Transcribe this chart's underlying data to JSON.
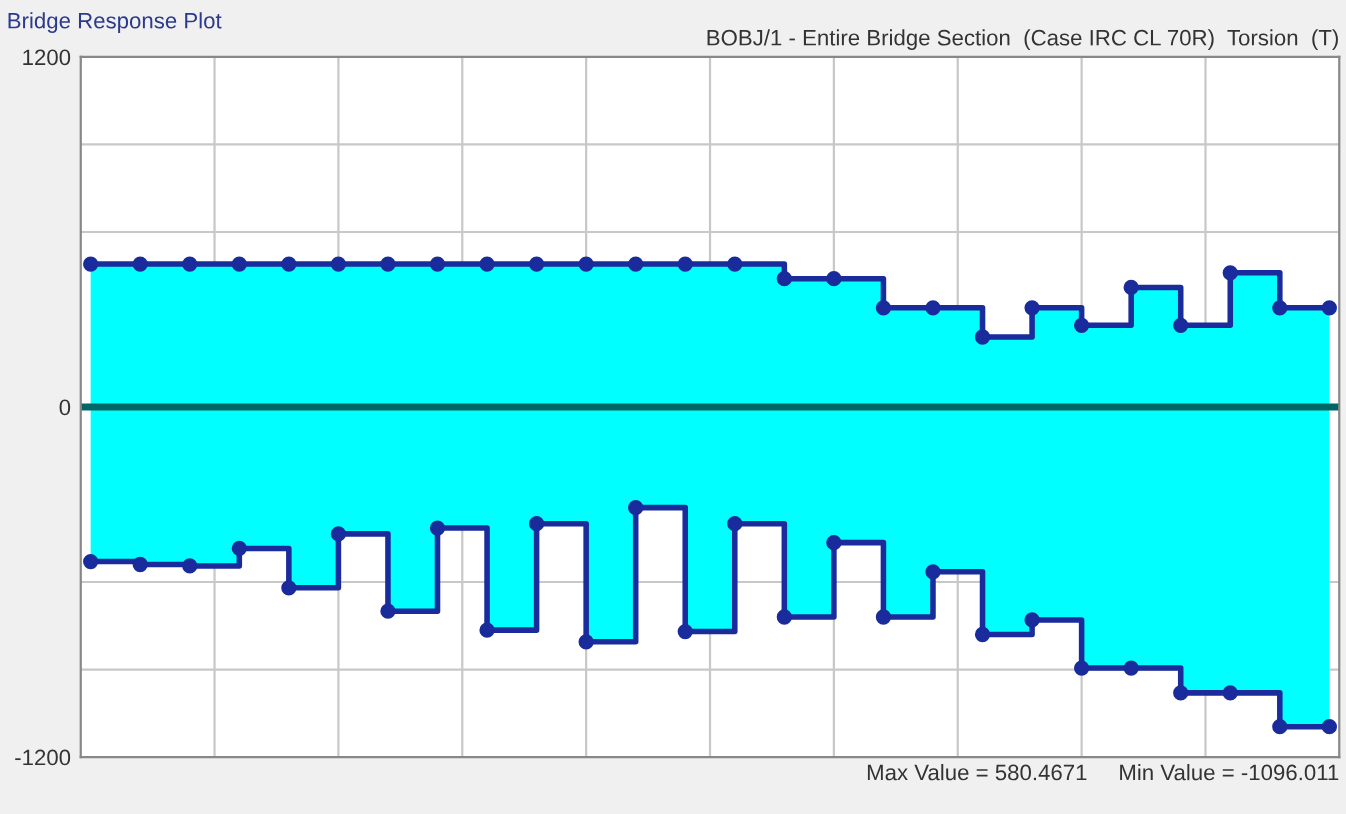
{
  "chart_data": {
    "type": "step",
    "title": "Bridge Response Plot",
    "subtitle": "BOBJ/1 - Entire Bridge Section  (Case IRC CL 70R)  Torsion  (T)",
    "annotations": [
      "Max Value = 580.4671",
      "Min Value = -1096.011"
    ],
    "categories": [
      null,
      null,
      null,
      null,
      null,
      null,
      null,
      null,
      null,
      null,
      null,
      null,
      null,
      null,
      null,
      null,
      null,
      null,
      null,
      null,
      null,
      null,
      null,
      null,
      null,
      null
    ],
    "ylim": [
      -1200,
      1200
    ],
    "yticks": [
      {
        "value": -1200,
        "label": "-1200"
      },
      {
        "value": -900,
        "label": null
      },
      {
        "value": -600,
        "label": null
      },
      {
        "value": 0,
        "label": "0"
      },
      {
        "value": 600,
        "label": null
      },
      {
        "value": 900,
        "label": null
      },
      {
        "value": 1200,
        "label": "1200"
      }
    ],
    "grid": true,
    "marker": "circle",
    "line_style": "solid",
    "ref_lines": [
      {
        "axis": "y",
        "value": 0,
        "color": "#006666"
      }
    ],
    "series": [
      {
        "type": "area",
        "color": "#00ffff",
        "values": [
          null,
          null,
          null,
          null,
          null,
          null,
          null,
          null,
          null,
          null,
          null,
          null,
          null,
          null,
          null,
          null,
          null,
          null,
          null,
          null,
          null,
          null,
          null,
          null,
          null,
          null
        ],
        "lower": [
          -530,
          -540,
          -545,
          -485,
          -620,
          -435,
          -700,
          -415,
          -765,
          -400,
          -805,
          -345,
          -770,
          -400,
          -720,
          -465,
          -720,
          -565,
          -780,
          -730,
          -895,
          -895,
          -980,
          -980,
          -1096,
          -1096
        ],
        "upper": [
          490,
          490,
          490,
          490,
          490,
          490,
          490,
          490,
          490,
          490,
          490,
          490,
          490,
          490,
          440,
          440,
          340,
          340,
          240,
          340,
          280,
          410,
          280,
          460,
          340,
          340
        ]
      },
      {
        "color": "#1a2b9c",
        "values": [
          490,
          490,
          490,
          490,
          490,
          490,
          490,
          490,
          490,
          490,
          490,
          490,
          490,
          490,
          440,
          440,
          340,
          340,
          240,
          340,
          280,
          410,
          280,
          460,
          340,
          340
        ]
      },
      {
        "color": "#1a2b9c",
        "values": [
          -530,
          -540,
          -545,
          -485,
          -620,
          -435,
          -700,
          -415,
          -765,
          -400,
          -805,
          -345,
          -770,
          -400,
          -720,
          -465,
          -720,
          -565,
          -780,
          -730,
          -895,
          -895,
          -980,
          -980,
          -1096,
          -1096
        ]
      }
    ]
  }
}
